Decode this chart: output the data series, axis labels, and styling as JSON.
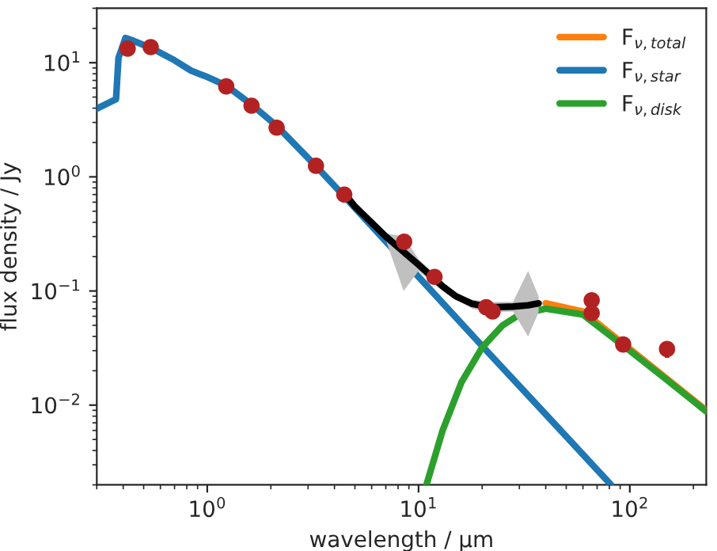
{
  "chart_data": {
    "type": "line",
    "xlabel": "wavelength / μm",
    "ylabel": "flux density / Jy",
    "log": "xy",
    "grid": false,
    "legend": "top right",
    "xlim": [
      0.3,
      230
    ],
    "ylim": [
      0.002,
      30
    ],
    "xticks": [
      {
        "value": 1,
        "label": "10$^{0}$"
      },
      {
        "value": 10,
        "label": "10$^{1}$"
      },
      {
        "value": 100,
        "label": "10$^{2}$"
      }
    ],
    "yticks": [
      {
        "value": 0.01,
        "label": "10$^{−2}$"
      },
      {
        "value": 0.1,
        "label": "10$^{−1}$"
      },
      {
        "value": 1,
        "label": "10$^{0}$"
      },
      {
        "value": 10,
        "label": "10$^{1}$"
      }
    ],
    "series": [
      {
        "name": "F$_{ν,total}$",
        "color": "#ff7f0e",
        "x": [
          40,
          60,
          100,
          150,
          230
        ],
        "values": [
          0.078,
          0.066,
          0.031,
          0.017,
          0.009
        ]
      },
      {
        "name": "F$_{ν,star}$",
        "color": "#1f77b4",
        "x": [
          0.3,
          0.37,
          0.38,
          0.41,
          0.45,
          0.55,
          0.7,
          0.84,
          1.0,
          1.23,
          1.62,
          2.13,
          3.33,
          4.5,
          10,
          20,
          40,
          81.6
        ],
        "values": [
          3.95,
          4.8,
          11,
          16.5,
          15.5,
          13.3,
          10.5,
          8.5,
          7.5,
          6.3,
          4.3,
          2.8,
          1.2,
          0.66,
          0.133,
          0.033,
          0.0083,
          0.002
        ]
      },
      {
        "name": "F$_{ν,disk}$",
        "color": "#2ca02c",
        "x": [
          10.9,
          13,
          16,
          20,
          25,
          30,
          40,
          60,
          100,
          150,
          230
        ],
        "values": [
          0.002,
          0.006,
          0.016,
          0.032,
          0.05,
          0.062,
          0.07,
          0.062,
          0.03,
          0.0166,
          0.0088
        ]
      },
      {
        "color": "#000000",
        "x": [
          4.5,
          5,
          7,
          8.5,
          10,
          13,
          15,
          18,
          22,
          28,
          33,
          37
        ],
        "values": [
          0.7,
          0.55,
          0.3,
          0.22,
          0.17,
          0.11,
          0.09,
          0.077,
          0.072,
          0.073,
          0.075,
          0.078
        ],
        "lower": [
          0.68,
          0.52,
          0.28,
          0.1,
          0.15,
          0.1,
          0.085,
          0.07,
          0.065,
          0.066,
          0.04,
          0.065
        ],
        "upper": [
          0.72,
          0.58,
          0.32,
          0.3,
          0.19,
          0.12,
          0.095,
          0.084,
          0.08,
          0.08,
          0.15,
          0.09
        ]
      },
      {
        "type": "scatter",
        "color": "#b22222",
        "marker": "circle",
        "x": [
          0.42,
          0.54,
          1.23,
          1.62,
          2.13,
          3.27,
          4.45,
          8.55,
          11.9,
          20.9,
          22.4,
          66,
          66,
          93,
          150
        ],
        "values": [
          13.3,
          13.7,
          6.2,
          4.2,
          2.7,
          1.25,
          0.7,
          0.27,
          0.133,
          0.072,
          0.066,
          0.083,
          0.064,
          0.034,
          0.031
        ],
        "errors": [
          null,
          null,
          null,
          null,
          null,
          null,
          null,
          null,
          null,
          null,
          null,
          null,
          null,
          null,
          0.005
        ]
      }
    ]
  }
}
